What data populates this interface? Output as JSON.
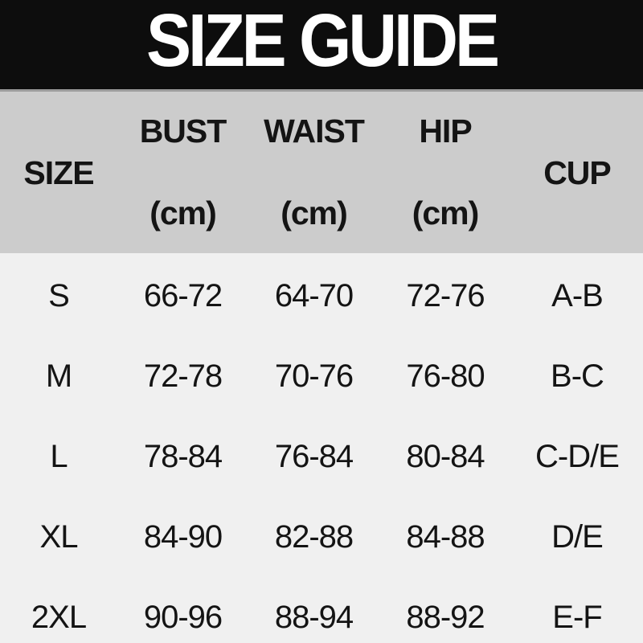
{
  "title": "SIZE GUIDE",
  "colors": {
    "banner_bg": "#0d0d0d",
    "banner_text": "#ffffff",
    "table_head_bg": "#cccccc",
    "body_bg": "#f0f0f0",
    "divider": "#9c9c9c",
    "text": "#141414"
  },
  "table": {
    "columns": [
      {
        "key": "size",
        "label": "SIZE",
        "unit": ""
      },
      {
        "key": "bust",
        "label": "BUST",
        "unit": "(cm)"
      },
      {
        "key": "waist",
        "label": "WAIST",
        "unit": "(cm)"
      },
      {
        "key": "hip",
        "label": "HIP",
        "unit": "(cm)"
      },
      {
        "key": "cup",
        "label": "CUP",
        "unit": ""
      }
    ],
    "rows": [
      {
        "size": "S",
        "bust": "66-72",
        "waist": "64-70",
        "hip": "72-76",
        "cup": "A-B"
      },
      {
        "size": "M",
        "bust": "72-78",
        "waist": "70-76",
        "hip": "76-80",
        "cup": "B-C"
      },
      {
        "size": "L",
        "bust": "78-84",
        "waist": "76-84",
        "hip": "80-84",
        "cup": "C-D/E"
      },
      {
        "size": "XL",
        "bust": "84-90",
        "waist": "82-88",
        "hip": "84-88",
        "cup": "D/E"
      },
      {
        "size": "2XL",
        "bust": "90-96",
        "waist": "88-94",
        "hip": "88-92",
        "cup": "E-F"
      }
    ]
  }
}
